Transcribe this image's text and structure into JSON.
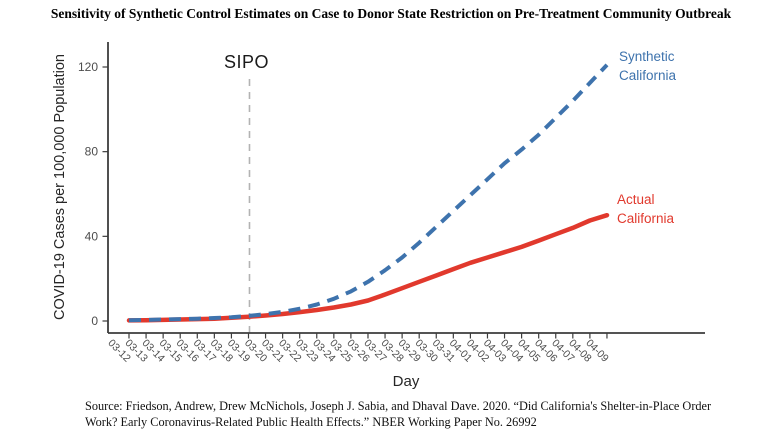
{
  "title": "Sensitivity of Synthetic Control Estimates on Case to Donor State Restriction on Pre-Treatment Community Outbreak",
  "colors": {
    "synthetic_blue": "#3e73ad",
    "actual_red": "#e1392d",
    "sipo_gray": "#b3b3b3",
    "axis": "#3c3c3c",
    "tick_text": "#4d4d4d"
  },
  "chart_data": {
    "type": "line",
    "title": "Sensitivity of Synthetic Control Estimates on Case to Donor State Restriction on Pre-Treatment Community Outbreak",
    "xlabel": "Day",
    "ylabel": "COVID-19 Cases per 100,000 Population",
    "x": [
      "03-12",
      "03-13",
      "03-14",
      "03-15",
      "03-16",
      "03-17",
      "03-18",
      "03-19",
      "03-20",
      "03-21",
      "03-22",
      "03-23",
      "03-24",
      "03-25",
      "03-26",
      "03-27",
      "03-28",
      "03-29",
      "03-30",
      "03-31",
      "04-01",
      "04-02",
      "04-03",
      "04-04",
      "04-05",
      "04-06",
      "04-07",
      "04-08",
      "04-09"
    ],
    "yticks": [
      0,
      40,
      80,
      120
    ],
    "ylim": [
      0,
      126
    ],
    "grid": false,
    "legend_position": "labels-at-line-ends",
    "series": [
      {
        "name": "Actual California",
        "style": "solid",
        "color": "#e1392d",
        "values": [
          0.3,
          0.4,
          0.5,
          0.7,
          0.9,
          1.1,
          1.5,
          2.0,
          2.6,
          3.3,
          4.2,
          5.2,
          6.4,
          7.8,
          9.7,
          12.5,
          15.5,
          18.5,
          21.5,
          24.5,
          27.5,
          30,
          32.5,
          35,
          38,
          41,
          44,
          47.5,
          50
        ]
      },
      {
        "name": "Synthetic California",
        "style": "dashed",
        "color": "#3e73ad",
        "values": [
          0.4,
          0.5,
          0.7,
          0.9,
          1.1,
          1.4,
          1.8,
          2.4,
          3.2,
          4.3,
          5.8,
          7.8,
          10.5,
          14,
          18.5,
          24,
          30,
          37,
          44.5,
          52,
          59.5,
          67,
          74.5,
          81,
          88,
          96,
          104,
          112.5,
          121
        ]
      }
    ],
    "annotations": {
      "sipo": {
        "label": "SIPO",
        "line_style": "vertical-dashed",
        "x_category": "03-19",
        "color": "#b3b3b3"
      }
    }
  },
  "legend": {
    "synthetic": "Synthetic\nCalifornia",
    "actual": "Actual\nCalifornia"
  },
  "source": {
    "line1": "Source: Friedson, Andrew, Drew McNichols, Joseph J. Sabia, and Dhaval Dave. 2020. “Did California's Shelter-in-Place Order",
    "line2": "Work? Early Coronavirus-Related Public Health Effects.” NBER Working Paper No. 26992"
  }
}
